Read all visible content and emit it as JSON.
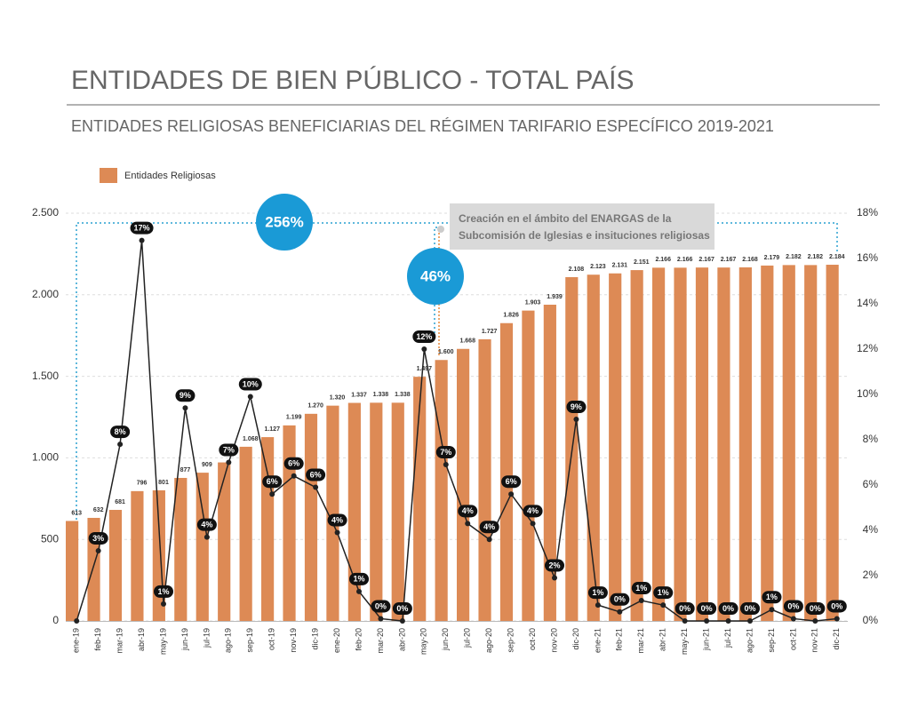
{
  "chart_data": {
    "type": "bar-line",
    "title": "ENTIDADES DE BIEN PÚBLICO - TOTAL PAÍS",
    "subtitle": "ENTIDADES RELIGIOSAS BENEFICIARIAS DEL RÉGIMEN TARIFARIO ESPECÍFICO 2019-2021",
    "annotations": [
      "256%",
      "46%",
      "Creación en el ámbito del ENARGAS de la",
      "Subcomisión de Iglesias e insituciones religiosas"
    ],
    "categories": [
      "ene-19",
      "feb-19",
      "mar-19",
      "abr-19",
      "may-19",
      "jun-19",
      "jul-19",
      "ago-19",
      "sep-19",
      "oct-19",
      "nov-19",
      "dic-19",
      "ene-20",
      "feb-20",
      "mar-20",
      "abr-20",
      "may-20",
      "jun-20",
      "jul-20",
      "ago-20",
      "sep-20",
      "oct-20",
      "nov-20",
      "dic-20",
      "ene-21",
      "feb-21",
      "mar-21",
      "abr-21",
      "may-21",
      "jun-21",
      "jul-21",
      "ago-21",
      "sep-21",
      "oct-21",
      "nov-21",
      "dic-21"
    ],
    "series": [
      {
        "name": "Entidades Religiosas",
        "color": "#dd8a55",
        "values": [
          613,
          632,
          681,
          796,
          801,
          877,
          909,
          972,
          1068,
          1127,
          1199,
          1270,
          1320,
          1337,
          1338,
          1338,
          1497,
          1600,
          1668,
          1727,
          1826,
          1903,
          1939,
          2108,
          2123,
          2131,
          2151,
          2166,
          2166,
          2167,
          2167,
          2168,
          2179,
          2182,
          2182,
          2184
        ],
        "value_labels": [
          "613",
          "632",
          "681",
          "796",
          "801",
          "877",
          "909",
          "972",
          "1.068",
          "1.127",
          "1.199",
          "1.270",
          "1.320",
          "1.337",
          "1.338",
          "1.338",
          "1.497",
          "1.600",
          "1.668",
          "1.727",
          "1.826",
          "1.903",
          "1.939",
          "2.108",
          "2.123",
          "2.131",
          "2.151",
          "2.166",
          "2.166",
          "2.167",
          "2.167",
          "2.168",
          "2.179",
          "2.182",
          "2.182",
          "2.184"
        ]
      },
      {
        "color": "#222222",
        "axis": "y2",
        "values": [
          0,
          3.1,
          7.8,
          16.8,
          0.75,
          9.4,
          3.7,
          7.0,
          9.9,
          5.6,
          6.4,
          5.9,
          3.9,
          1.3,
          0.1,
          0,
          12.0,
          6.9,
          4.3,
          3.6,
          5.6,
          4.3,
          1.9,
          8.9,
          0.7,
          0.4,
          0.9,
          0.7,
          0.0,
          0.0,
          0.0,
          0.0,
          0.5,
          0.1,
          0.0,
          0.1
        ],
        "value_labels": [
          null,
          "3%",
          "8%",
          "17%",
          "1%",
          "9%",
          "4%",
          "7%",
          "10%",
          "6%",
          "6%",
          "6%",
          "4%",
          "1%",
          "0%",
          "0%",
          "12%",
          "7%",
          "4%",
          "4%",
          "6%",
          "4%",
          "2%",
          "9%",
          "1%",
          "0%",
          "1%",
          "1%",
          "0%",
          "0%",
          "0%",
          "0%",
          "1%",
          "0%",
          "0%",
          "0%"
        ]
      }
    ],
    "ylim": [
      0,
      2500
    ],
    "yticks": [
      0,
      500,
      {
        "value": 1000,
        "label": "1.000"
      },
      {
        "value": 1500,
        "label": "1.500"
      },
      {
        "value": 2000,
        "label": "2.000"
      },
      {
        "value": 2500,
        "label": "2.500"
      }
    ],
    "y2lim": [
      0,
      18
    ],
    "y2ticks": [
      {
        "value": 0,
        "label": "0%"
      },
      {
        "value": 2,
        "label": "2%"
      },
      {
        "value": 4,
        "label": "4%"
      },
      {
        "value": 6,
        "label": "6%"
      },
      {
        "value": 8,
        "label": "8%"
      },
      {
        "value": 10,
        "label": "10%"
      },
      {
        "value": 12,
        "label": "12%"
      },
      {
        "value": 14,
        "label": "14%"
      },
      {
        "value": 16,
        "label": "16%"
      },
      {
        "value": 18,
        "label": "18%"
      }
    ],
    "grid": true,
    "legend": "top-left"
  }
}
